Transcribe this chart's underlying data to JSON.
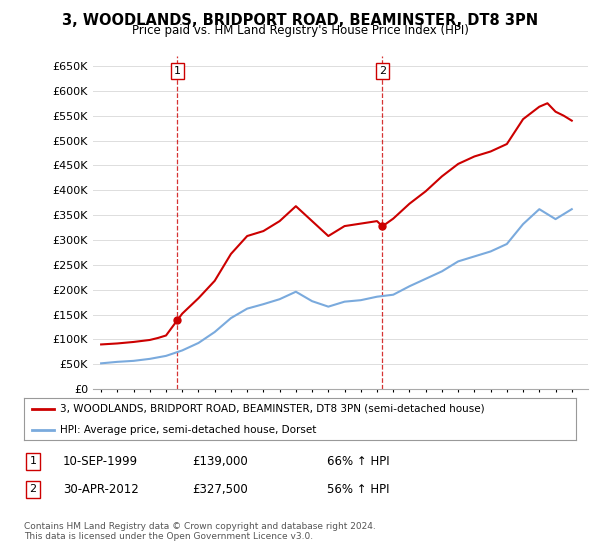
{
  "title": "3, WOODLANDS, BRIDPORT ROAD, BEAMINSTER, DT8 3PN",
  "subtitle": "Price paid vs. HM Land Registry's House Price Index (HPI)",
  "footer": "Contains HM Land Registry data © Crown copyright and database right 2024.\nThis data is licensed under the Open Government Licence v3.0.",
  "legend_line1": "3, WOODLANDS, BRIDPORT ROAD, BEAMINSTER, DT8 3PN (semi-detached house)",
  "legend_line2": "HPI: Average price, semi-detached house, Dorset",
  "annotation1": {
    "num": "1",
    "date": "10-SEP-1999",
    "price": "£139,000",
    "change": "66% ↑ HPI"
  },
  "annotation2": {
    "num": "2",
    "date": "30-APR-2012",
    "price": "£327,500",
    "change": "56% ↑ HPI"
  },
  "sale1_x": 1999.7,
  "sale1_y": 139000,
  "sale2_x": 2012.33,
  "sale2_y": 327500,
  "property_color": "#cc0000",
  "hpi_color": "#7aaadd",
  "ylim": [
    0,
    670000
  ],
  "xlim": [
    1994.5,
    2025.0
  ],
  "yticks": [
    0,
    50000,
    100000,
    150000,
    200000,
    250000,
    300000,
    350000,
    400000,
    450000,
    500000,
    550000,
    600000,
    650000
  ],
  "ytick_labels": [
    "£0",
    "£50K",
    "£100K",
    "£150K",
    "£200K",
    "£250K",
    "£300K",
    "£350K",
    "£400K",
    "£450K",
    "£500K",
    "£550K",
    "£600K",
    "£650K"
  ],
  "hpi_years": [
    1995,
    1996,
    1997,
    1998,
    1999,
    2000,
    2001,
    2002,
    2003,
    2004,
    2005,
    2006,
    2007,
    2008,
    2009,
    2010,
    2011,
    2012,
    2013,
    2014,
    2015,
    2016,
    2017,
    2018,
    2019,
    2020,
    2021,
    2022,
    2023,
    2024
  ],
  "hpi_values": [
    52000,
    55000,
    57000,
    61000,
    67000,
    78000,
    93000,
    115000,
    143000,
    162000,
    171000,
    181000,
    196000,
    177000,
    166000,
    176000,
    179000,
    186000,
    190000,
    207000,
    222000,
    237000,
    257000,
    267000,
    277000,
    292000,
    332000,
    362000,
    342000,
    362000
  ],
  "property_years": [
    1995,
    1995.5,
    1996,
    1996.5,
    1997,
    1997.5,
    1998,
    1998.5,
    1999.0,
    1999.7,
    2000,
    2001,
    2002,
    2003,
    2004,
    2005,
    2006,
    2007,
    2008,
    2009,
    2010,
    2011,
    2012.0,
    2012.33,
    2013,
    2014,
    2015,
    2016,
    2017,
    2018,
    2019,
    2020,
    2021,
    2022,
    2022.5,
    2023,
    2023.5,
    2024
  ],
  "property_values": [
    90000,
    91000,
    92000,
    93500,
    95000,
    97000,
    99000,
    103000,
    108000,
    139000,
    152000,
    183000,
    218000,
    272000,
    308000,
    318000,
    338000,
    368000,
    338000,
    308000,
    328000,
    333000,
    338000,
    327500,
    343000,
    373000,
    398000,
    428000,
    453000,
    468000,
    478000,
    493000,
    543000,
    568000,
    575000,
    558000,
    550000,
    540000
  ]
}
